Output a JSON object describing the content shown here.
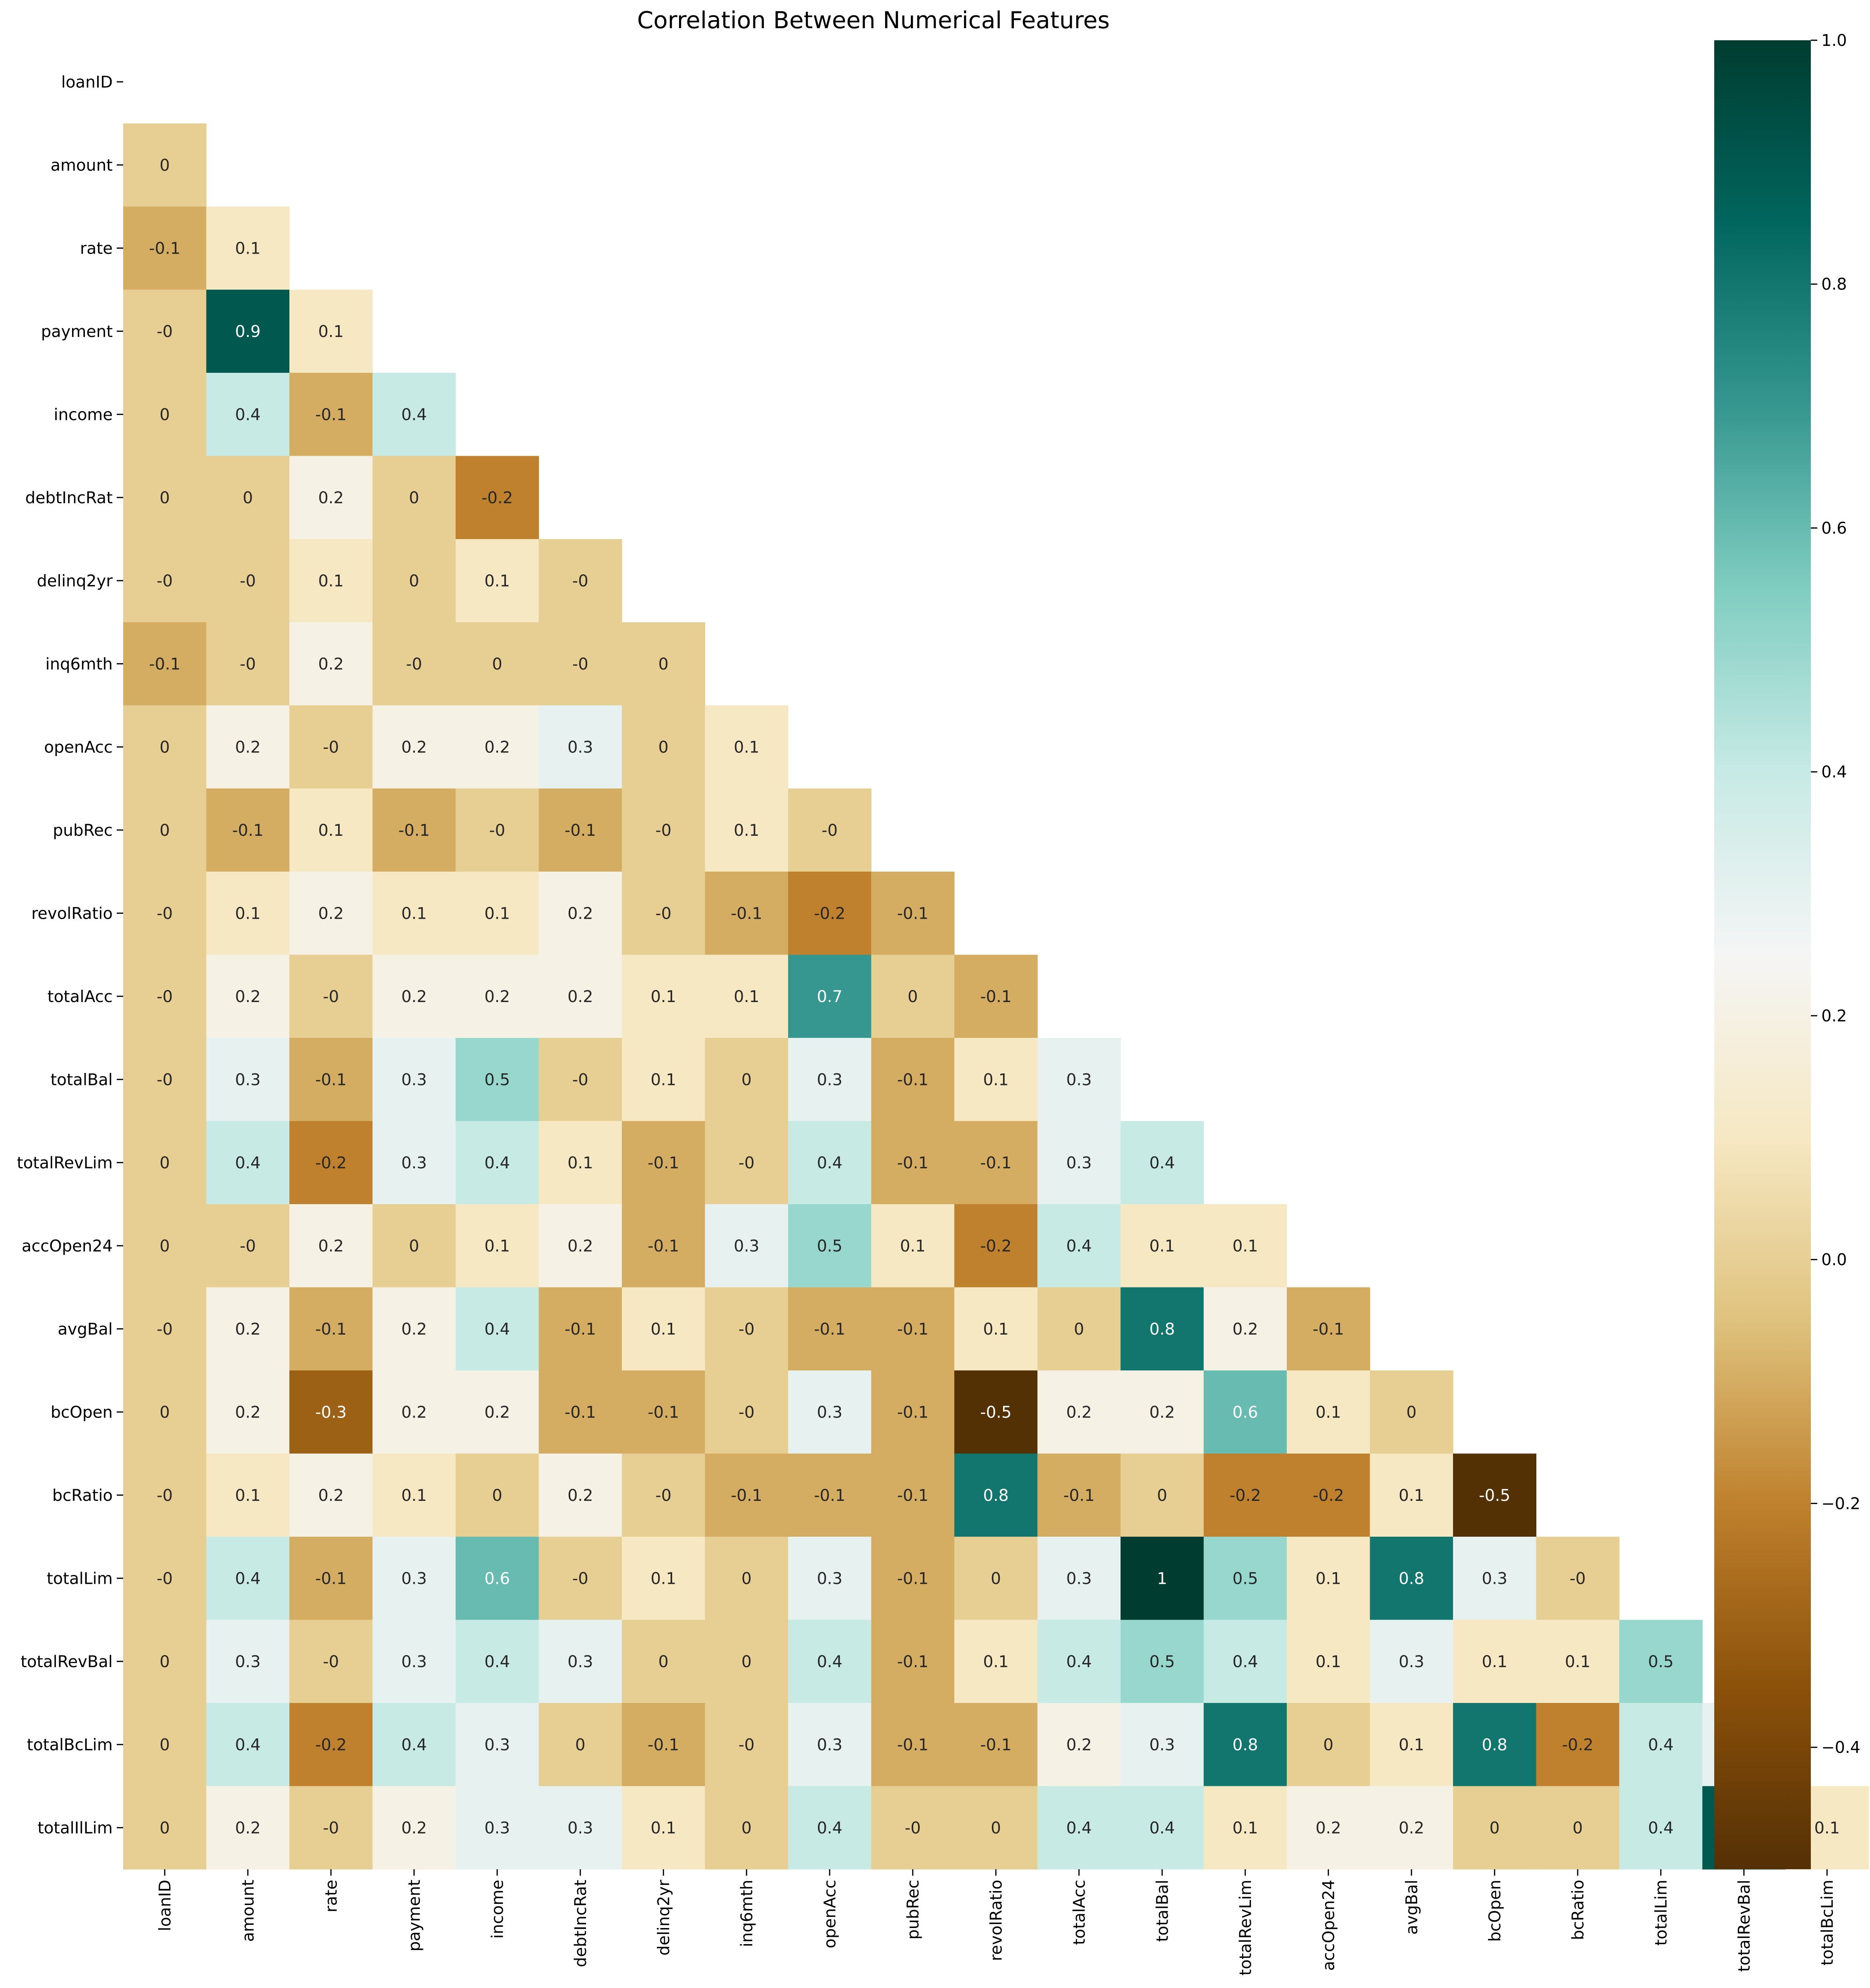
{
  "chart_data": {
    "type": "heatmap",
    "title": "Correlation Between Numerical Features",
    "xlabel": "",
    "ylabel": "",
    "labels": [
      "loanID",
      "amount",
      "rate",
      "payment",
      "income",
      "debtIncRat",
      "delinq2yr",
      "inq6mth",
      "openAcc",
      "pubRec",
      "revolRatio",
      "totalAcc",
      "totalBal",
      "totalRevLim",
      "accOpen24",
      "avgBal",
      "bcOpen",
      "bcRatio",
      "totalLim",
      "totalRevBal",
      "totalBcLim",
      "totalIlLim"
    ],
    "mask": "upper-triangle-including-diagonal",
    "values": [
      [],
      [
        "0"
      ],
      [
        "-0.1",
        "0.1"
      ],
      [
        "-0",
        "0.9",
        "0.1"
      ],
      [
        "0",
        "0.4",
        "-0.1",
        "0.4"
      ],
      [
        "0",
        "0",
        "0.2",
        "0",
        "-0.2"
      ],
      [
        "-0",
        "-0",
        "0.1",
        "0",
        "0.1",
        "-0"
      ],
      [
        "-0.1",
        "-0",
        "0.2",
        "-0",
        "0",
        "-0",
        "0"
      ],
      [
        "0",
        "0.2",
        "-0",
        "0.2",
        "0.2",
        "0.3",
        "0",
        "0.1"
      ],
      [
        "0",
        "-0.1",
        "0.1",
        "-0.1",
        "-0",
        "-0.1",
        "-0",
        "0.1",
        "-0"
      ],
      [
        "-0",
        "0.1",
        "0.2",
        "0.1",
        "0.1",
        "0.2",
        "-0",
        "-0.1",
        "-0.2",
        "-0.1"
      ],
      [
        "-0",
        "0.2",
        "-0",
        "0.2",
        "0.2",
        "0.2",
        "0.1",
        "0.1",
        "0.7",
        "0",
        "-0.1"
      ],
      [
        "-0",
        "0.3",
        "-0.1",
        "0.3",
        "0.5",
        "-0",
        "0.1",
        "0",
        "0.3",
        "-0.1",
        "0.1",
        "0.3"
      ],
      [
        "0",
        "0.4",
        "-0.2",
        "0.3",
        "0.4",
        "0.1",
        "-0.1",
        "-0",
        "0.4",
        "-0.1",
        "-0.1",
        "0.3",
        "0.4"
      ],
      [
        "0",
        "-0",
        "0.2",
        "0",
        "0.1",
        "0.2",
        "-0.1",
        "0.3",
        "0.5",
        "0.1",
        "-0.2",
        "0.4",
        "0.1",
        "0.1"
      ],
      [
        "-0",
        "0.2",
        "-0.1",
        "0.2",
        "0.4",
        "-0.1",
        "0.1",
        "-0",
        "-0.1",
        "-0.1",
        "0.1",
        "0",
        "0.8",
        "0.2",
        "-0.1"
      ],
      [
        "0",
        "0.2",
        "-0.3",
        "0.2",
        "0.2",
        "-0.1",
        "-0.1",
        "-0",
        "0.3",
        "-0.1",
        "-0.5",
        "0.2",
        "0.2",
        "0.6",
        "0.1",
        "0"
      ],
      [
        "-0",
        "0.1",
        "0.2",
        "0.1",
        "0",
        "0.2",
        "-0",
        "-0.1",
        "-0.1",
        "-0.1",
        "0.8",
        "-0.1",
        "0",
        "-0.2",
        "-0.2",
        "0.1",
        "-0.5"
      ],
      [
        "-0",
        "0.4",
        "-0.1",
        "0.3",
        "0.6",
        "-0",
        "0.1",
        "0",
        "0.3",
        "-0.1",
        "0",
        "0.3",
        "1",
        "0.5",
        "0.1",
        "0.8",
        "0.3",
        "-0"
      ],
      [
        "0",
        "0.3",
        "-0",
        "0.3",
        "0.4",
        "0.3",
        "0",
        "0",
        "0.4",
        "-0.1",
        "0.1",
        "0.4",
        "0.5",
        "0.4",
        "0.1",
        "0.3",
        "0.1",
        "0.1",
        "0.5"
      ],
      [
        "0",
        "0.4",
        "-0.2",
        "0.4",
        "0.3",
        "0",
        "-0.1",
        "-0",
        "0.3",
        "-0.1",
        "-0.1",
        "0.2",
        "0.3",
        "0.8",
        "0",
        "0.1",
        "0.8",
        "-0.2",
        "0.4",
        "0.3"
      ],
      [
        "0",
        "0.2",
        "-0",
        "0.2",
        "0.3",
        "0.3",
        "0.1",
        "0",
        "0.4",
        "-0",
        "0",
        "0.4",
        "0.4",
        "0.1",
        "0.2",
        "0.2",
        "0",
        "0",
        "0.4",
        "0.9",
        "0.1"
      ]
    ],
    "colorbar": {
      "min": -0.5,
      "max": 1.0,
      "ticks": [
        -0.4,
        -0.2,
        0.0,
        0.2,
        0.4,
        0.6,
        0.8,
        1.0
      ],
      "tick_labels": [
        "−0.4",
        "−0.2",
        "0.0",
        "0.2",
        "0.4",
        "0.6",
        "0.8",
        "1.0"
      ],
      "colormap": "BrBG",
      "stops": [
        "#543005",
        "#8c510a",
        "#bf812d",
        "#dfc27d",
        "#f6e8c3",
        "#f5f5f5",
        "#c7eae5",
        "#80cdc1",
        "#35978f",
        "#01665e",
        "#003c30"
      ]
    },
    "grid": false,
    "legend": "colorbar-right"
  }
}
